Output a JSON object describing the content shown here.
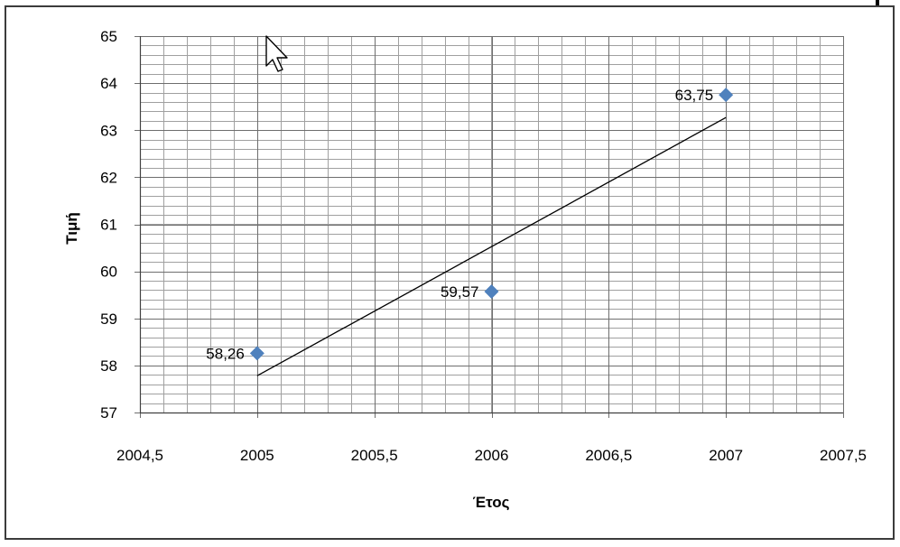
{
  "chart_data": {
    "type": "scatter",
    "title": "",
    "xlabel": "Έτος",
    "ylabel": "Τιμή",
    "xlim": [
      2004.5,
      2007.5
    ],
    "ylim": [
      57,
      65
    ],
    "x_ticks": [
      "2004,5",
      "2005",
      "2005,5",
      "2006",
      "2006,5",
      "2007",
      "2007,5"
    ],
    "y_ticks": [
      "57",
      "58",
      "59",
      "60",
      "61",
      "62",
      "63",
      "64",
      "65"
    ],
    "grid": true,
    "legend": "none",
    "series": [
      {
        "x": [
          2005,
          2006,
          2007
        ],
        "y": [
          58.26,
          59.57,
          63.75
        ],
        "labels": [
          "58,26",
          "59,57",
          "63,75"
        ],
        "marker": "diamond",
        "color": "#4f81bd"
      }
    ],
    "trendline": {
      "type": "linear",
      "x": [
        2005,
        2007
      ],
      "y": [
        57.78,
        63.27
      ],
      "color": "#000000"
    }
  }
}
